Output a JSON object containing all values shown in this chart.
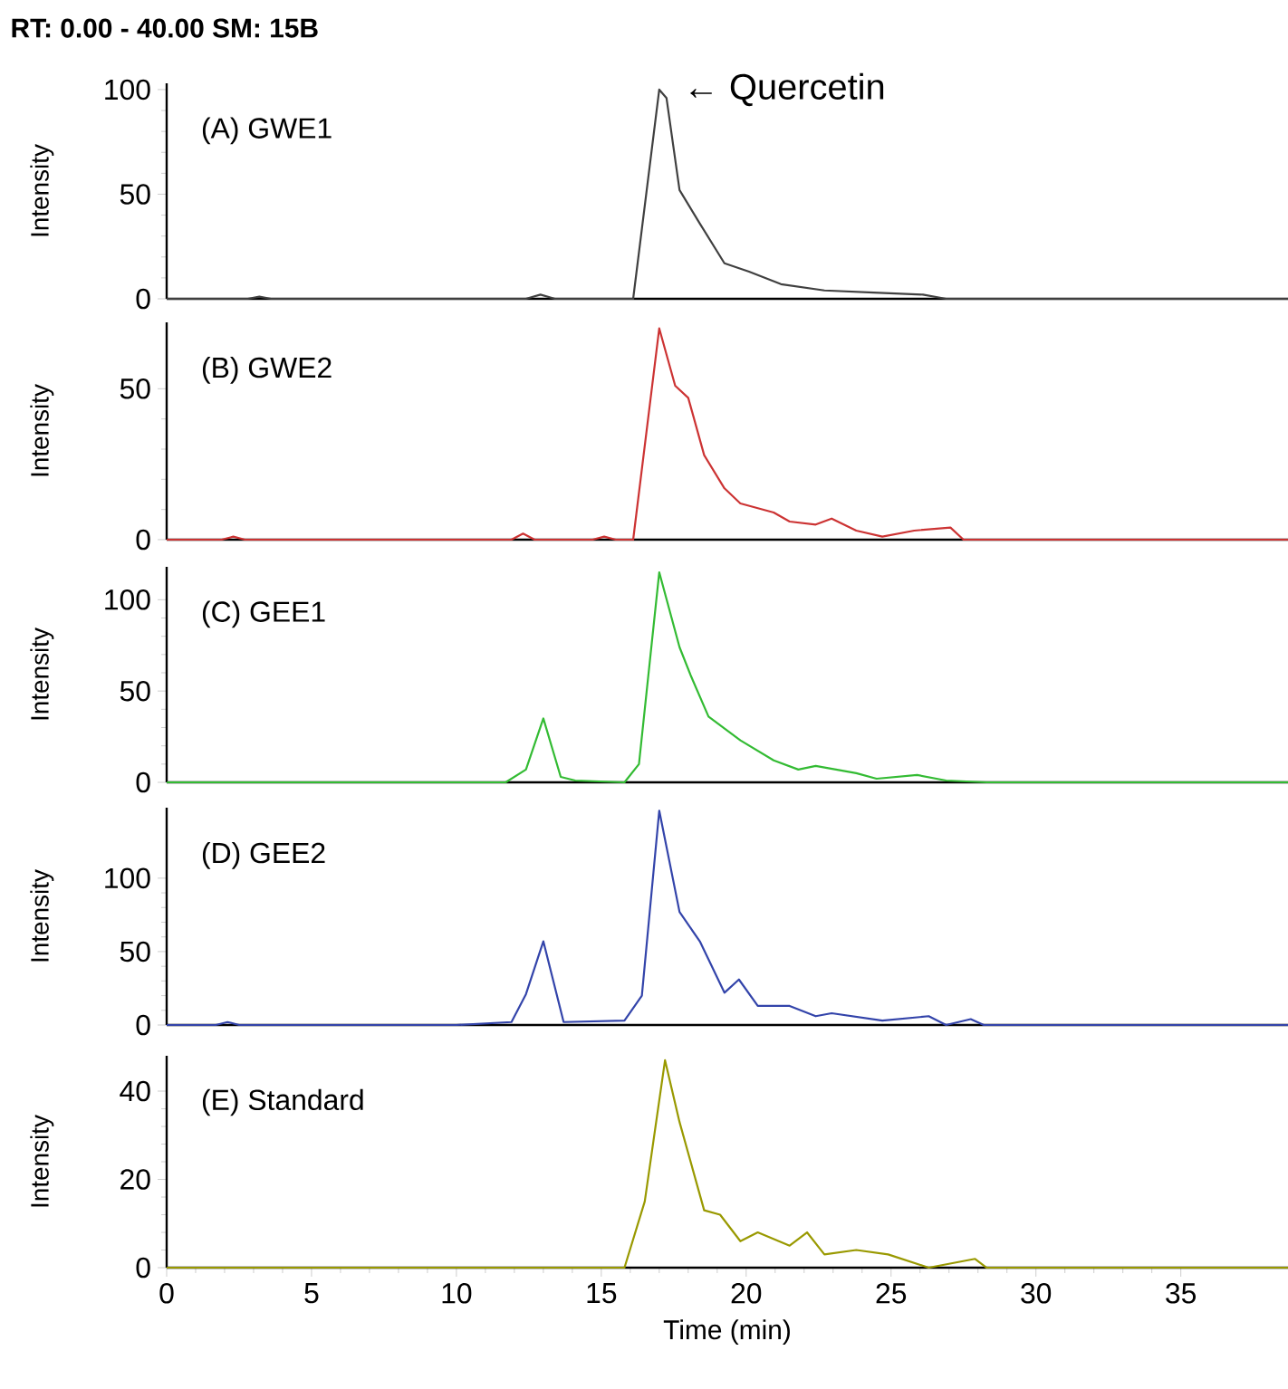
{
  "chart_data": [
    {
      "type": "line",
      "title": "(A) GWE1",
      "annotations": [
        "RT: 0.00 - 40.00   SM: 15B",
        {
          "text": "← Quercetin",
          "x": 17.0,
          "y": 100
        }
      ],
      "ylabel": "Intensity",
      "color": "#404040",
      "tick_labels": "y",
      "x": [
        0,
        2.8,
        3.2,
        3.6,
        12.4,
        12.9,
        13.4,
        16.1,
        17.0,
        17.25,
        17.7,
        18.4,
        19.25,
        20.1,
        21.2,
        22.7,
        24.4,
        26.1,
        26.9,
        38.7
      ],
      "values": [
        0,
        0,
        1,
        0,
        0,
        2,
        0,
        0,
        100,
        96,
        52,
        36,
        17,
        13,
        7,
        4,
        3,
        2,
        0,
        0
      ],
      "xlim": [
        0,
        38.7
      ],
      "xticks": [
        0,
        5,
        10,
        15,
        20,
        25,
        30,
        35
      ],
      "ylim": [
        0,
        103
      ],
      "yticks": [
        0,
        50,
        100
      ]
    },
    {
      "type": "line",
      "title": "(B) GWE2",
      "ylabel": "Intensity",
      "color": "#cc3333",
      "tick_labels": "y",
      "x": [
        0,
        1.9,
        2.3,
        2.7,
        11.9,
        12.3,
        12.7,
        14.7,
        15.1,
        15.5,
        16.1,
        17.0,
        17.55,
        18.0,
        18.55,
        19.25,
        19.8,
        20.95,
        21.5,
        22.4,
        22.95,
        23.8,
        24.7,
        25.8,
        27.05,
        27.5,
        38.7
      ],
      "values": [
        0,
        0,
        1,
        0,
        0,
        2,
        0,
        0,
        1,
        0,
        0,
        70,
        51,
        47,
        28,
        17,
        12,
        9,
        6,
        5,
        7,
        3,
        1,
        3,
        4,
        0,
        0
      ],
      "xlim": [
        0,
        38.7
      ],
      "xticks": [
        0,
        5,
        10,
        15,
        20,
        25,
        30,
        35
      ],
      "ylim": [
        0,
        72
      ],
      "yticks": [
        0,
        50
      ]
    },
    {
      "type": "line",
      "title": "(C) GEE1",
      "ylabel": "Intensity",
      "color": "#33bb33",
      "tick_labels": "y",
      "x": [
        0,
        11.7,
        12.4,
        13.0,
        13.6,
        14.1,
        15.8,
        16.3,
        17.0,
        17.7,
        18.1,
        18.7,
        19.8,
        20.95,
        21.8,
        22.4,
        23.8,
        24.5,
        25.9,
        26.9,
        28.3,
        38.7
      ],
      "values": [
        0,
        0,
        7,
        35,
        3,
        1,
        0,
        10,
        115,
        74,
        58,
        36,
        23,
        12,
        7,
        9,
        5,
        2,
        4,
        1,
        0,
        0
      ],
      "xlim": [
        0,
        38.7
      ],
      "xticks": [
        0,
        5,
        10,
        15,
        20,
        25,
        30,
        35
      ],
      "ylim": [
        0,
        118
      ],
      "yticks": [
        0,
        50,
        100
      ]
    },
    {
      "type": "line",
      "title": "(D) GEE2",
      "ylabel": "Intensity",
      "color": "#3344aa",
      "tick_labels": "y",
      "x": [
        0,
        1.7,
        2.1,
        2.5,
        10.0,
        11.9,
        12.4,
        13.0,
        13.7,
        15.8,
        16.4,
        17.0,
        17.7,
        18.4,
        19.25,
        19.75,
        20.4,
        21.5,
        22.4,
        22.95,
        24.7,
        26.3,
        26.9,
        27.75,
        28.2,
        38.7
      ],
      "values": [
        0,
        0,
        2,
        0,
        0,
        2,
        21,
        57,
        2,
        3,
        20,
        146,
        77,
        57,
        22,
        31,
        13,
        13,
        6,
        8,
        3,
        6,
        0,
        4,
        0,
        0
      ],
      "xlim": [
        0,
        38.7
      ],
      "xticks": [
        0,
        5,
        10,
        15,
        20,
        25,
        30,
        35
      ],
      "ylim": [
        0,
        148
      ],
      "yticks": [
        0,
        50,
        100
      ]
    },
    {
      "type": "line",
      "title": "(E) Standard",
      "ylabel": "Intensity",
      "xlabel": "Time (min)",
      "color": "#999900",
      "x": [
        0,
        15.8,
        16.5,
        17.2,
        17.7,
        18.55,
        19.1,
        19.8,
        20.4,
        21.5,
        22.1,
        22.7,
        23.8,
        24.9,
        26.3,
        27.9,
        28.3,
        38.7
      ],
      "values": [
        0,
        0,
        15,
        47,
        33,
        13,
        12,
        6,
        8,
        5,
        8,
        3,
        4,
        3,
        0,
        2,
        0,
        0
      ],
      "xlim": [
        0,
        38.7
      ],
      "xticks": [
        0,
        5,
        10,
        15,
        20,
        25,
        30,
        35
      ],
      "ylim": [
        0,
        48
      ],
      "yticks": [
        0,
        20,
        40
      ]
    }
  ]
}
